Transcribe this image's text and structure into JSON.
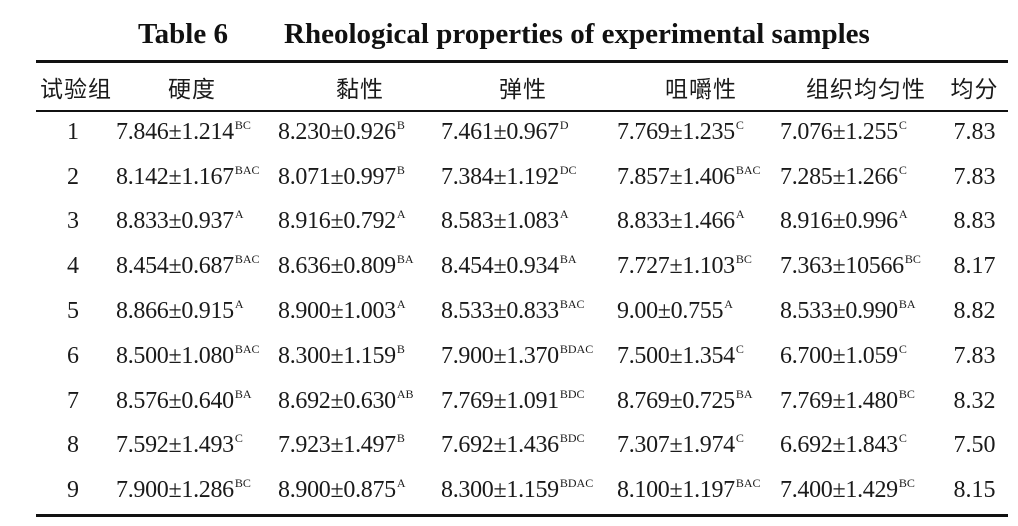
{
  "caption": {
    "label": "Table 6",
    "title": "Rheological properties of experimental samples"
  },
  "table": {
    "headers": [
      "试验组",
      "硬度",
      "黏性",
      "弹性",
      "咀嚼性",
      "组织均匀性",
      "均分"
    ],
    "rows": [
      {
        "group": "1",
        "hardness": {
          "value": "7.846±1.214",
          "sig": "BC"
        },
        "viscosity": {
          "value": "8.230±0.926",
          "sig": "B"
        },
        "springiness": {
          "value": "7.461±0.967",
          "sig": "D"
        },
        "chewiness": {
          "value": "7.769±1.235",
          "sig": "C"
        },
        "uniformity": {
          "value": "7.076±1.255",
          "sig": "C"
        },
        "score": "7.83"
      },
      {
        "group": "2",
        "hardness": {
          "value": "8.142±1.167",
          "sig": "BAC"
        },
        "viscosity": {
          "value": "8.071±0.997",
          "sig": "B"
        },
        "springiness": {
          "value": "7.384±1.192",
          "sig": "DC"
        },
        "chewiness": {
          "value": "7.857±1.406",
          "sig": "BAC"
        },
        "uniformity": {
          "value": "7.285±1.266",
          "sig": "C"
        },
        "score": "7.83"
      },
      {
        "group": "3",
        "hardness": {
          "value": "8.833±0.937",
          "sig": "A"
        },
        "viscosity": {
          "value": "8.916±0.792",
          "sig": "A"
        },
        "springiness": {
          "value": "8.583±1.083",
          "sig": "A"
        },
        "chewiness": {
          "value": "8.833±1.466",
          "sig": "A"
        },
        "uniformity": {
          "value": "8.916±0.996",
          "sig": "A"
        },
        "score": "8.83"
      },
      {
        "group": "4",
        "hardness": {
          "value": "8.454±0.687",
          "sig": "BAC"
        },
        "viscosity": {
          "value": "8.636±0.809",
          "sig": "BA"
        },
        "springiness": {
          "value": "8.454±0.934",
          "sig": "BA"
        },
        "chewiness": {
          "value": "7.727±1.103",
          "sig": "BC"
        },
        "uniformity": {
          "value": "7.363±10566",
          "sig": "BC"
        },
        "score": "8.17"
      },
      {
        "group": "5",
        "hardness": {
          "value": "8.866±0.915",
          "sig": "A"
        },
        "viscosity": {
          "value": "8.900±1.003",
          "sig": "A"
        },
        "springiness": {
          "value": "8.533±0.833",
          "sig": "BAC"
        },
        "chewiness": {
          "value": "9.00±0.755",
          "sig": "A"
        },
        "uniformity": {
          "value": "8.533±0.990",
          "sig": "BA"
        },
        "score": "8.82"
      },
      {
        "group": "6",
        "hardness": {
          "value": "8.500±1.080",
          "sig": "BAC"
        },
        "viscosity": {
          "value": "8.300±1.159",
          "sig": "B"
        },
        "springiness": {
          "value": "7.900±1.370",
          "sig": "BDAC"
        },
        "chewiness": {
          "value": "7.500±1.354",
          "sig": "C"
        },
        "uniformity": {
          "value": "6.700±1.059",
          "sig": "C"
        },
        "score": "7.83"
      },
      {
        "group": "7",
        "hardness": {
          "value": "8.576±0.640",
          "sig": "BA"
        },
        "viscosity": {
          "value": "8.692±0.630",
          "sig": "AB"
        },
        "springiness": {
          "value": "7.769±1.091",
          "sig": "BDC"
        },
        "chewiness": {
          "value": "8.769±0.725",
          "sig": "BA"
        },
        "uniformity": {
          "value": "7.769±1.480",
          "sig": "BC"
        },
        "score": "8.32"
      },
      {
        "group": "8",
        "hardness": {
          "value": "7.592±1.493",
          "sig": "C"
        },
        "viscosity": {
          "value": "7.923±1.497",
          "sig": "B"
        },
        "springiness": {
          "value": "7.692±1.436",
          "sig": "BDC"
        },
        "chewiness": {
          "value": "7.307±1.974",
          "sig": "C"
        },
        "uniformity": {
          "value": "6.692±1.843",
          "sig": "C"
        },
        "score": "7.50"
      },
      {
        "group": "9",
        "hardness": {
          "value": "7.900±1.286",
          "sig": "BC"
        },
        "viscosity": {
          "value": "8.900±0.875",
          "sig": "A"
        },
        "springiness": {
          "value": "8.300±1.159",
          "sig": "BDAC"
        },
        "chewiness": {
          "value": "8.100±1.197",
          "sig": "BAC"
        },
        "uniformity": {
          "value": "7.400±1.429",
          "sig": "BC"
        },
        "score": "8.15"
      }
    ]
  }
}
